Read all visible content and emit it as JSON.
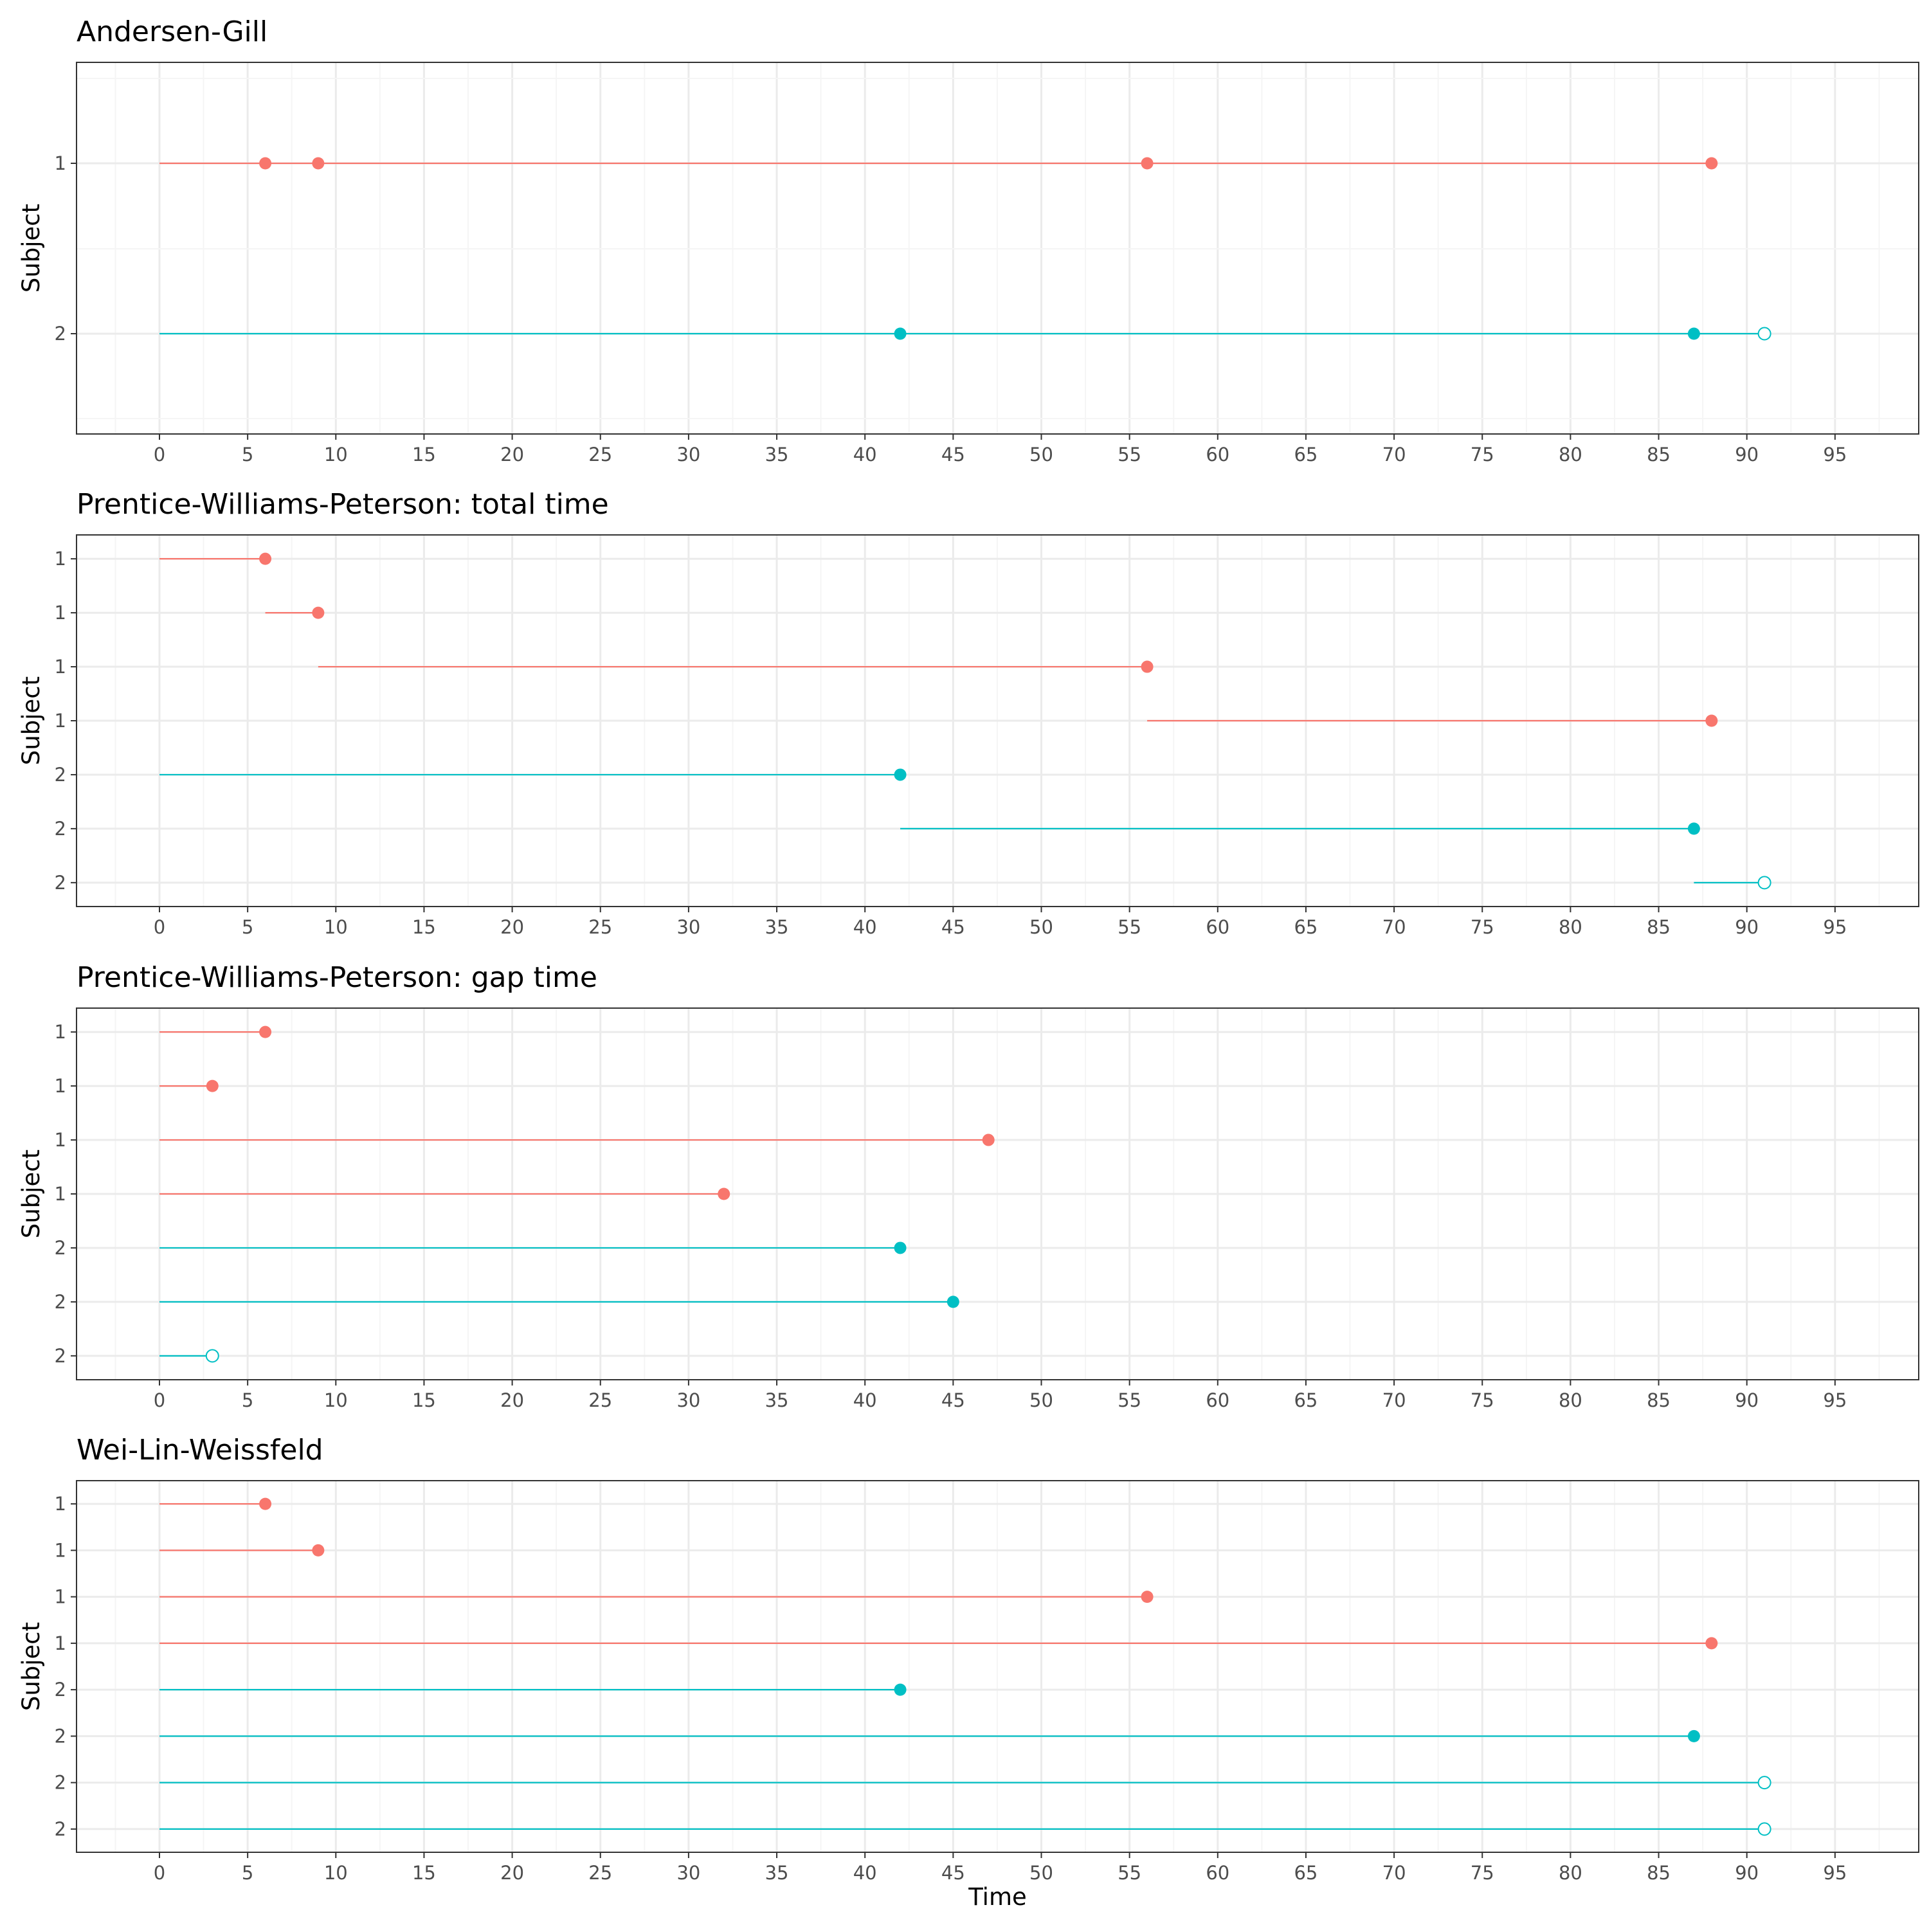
{
  "colors": {
    "subject_1": "#F8766D",
    "subject_2": "#00BFC4",
    "grid_major": "#EBEBEB",
    "grid_minor": "#F5F5F5",
    "panel_border": "#333333"
  },
  "chart_data": [
    {
      "type": "segment-event",
      "title": "Andersen-Gill",
      "xlabel": "",
      "ylabel": "Subject",
      "xlim": [
        0,
        95
      ],
      "x_ticks": [
        0,
        5,
        10,
        15,
        20,
        25,
        30,
        35,
        40,
        45,
        50,
        55,
        60,
        65,
        70,
        75,
        80,
        85,
        90,
        95
      ],
      "y_tick_labels": [
        "1",
        "2"
      ],
      "grid": true,
      "rows": [
        {
          "subject": "1",
          "segments": [
            [
              0,
              88
            ]
          ],
          "events": [
            6,
            9,
            56,
            88
          ],
          "censored": []
        },
        {
          "subject": "2",
          "segments": [
            [
              0,
              91
            ]
          ],
          "events": [
            42,
            87
          ],
          "censored": [
            91
          ]
        }
      ]
    },
    {
      "type": "segment-event",
      "title": "Prentice-Williams-Peterson: total time",
      "xlabel": "",
      "ylabel": "Subject",
      "xlim": [
        0,
        95
      ],
      "x_ticks": [
        0,
        5,
        10,
        15,
        20,
        25,
        30,
        35,
        40,
        45,
        50,
        55,
        60,
        65,
        70,
        75,
        80,
        85,
        90,
        95
      ],
      "y_tick_labels": [
        "1",
        "1",
        "1",
        "1",
        "2",
        "2",
        "2"
      ],
      "grid": true,
      "rows": [
        {
          "subject": "1",
          "start": 0,
          "stop": 6,
          "status": "event"
        },
        {
          "subject": "1",
          "start": 6,
          "stop": 9,
          "status": "event"
        },
        {
          "subject": "1",
          "start": 9,
          "stop": 56,
          "status": "event"
        },
        {
          "subject": "1",
          "start": 56,
          "stop": 88,
          "status": "event"
        },
        {
          "subject": "2",
          "start": 0,
          "stop": 42,
          "status": "event"
        },
        {
          "subject": "2",
          "start": 42,
          "stop": 87,
          "status": "event"
        },
        {
          "subject": "2",
          "start": 87,
          "stop": 91,
          "status": "censored"
        }
      ]
    },
    {
      "type": "segment-event",
      "title": "Prentice-Williams-Peterson: gap time",
      "xlabel": "",
      "ylabel": "Subject",
      "xlim": [
        0,
        95
      ],
      "x_ticks": [
        0,
        5,
        10,
        15,
        20,
        25,
        30,
        35,
        40,
        45,
        50,
        55,
        60,
        65,
        70,
        75,
        80,
        85,
        90,
        95
      ],
      "y_tick_labels": [
        "1",
        "1",
        "1",
        "1",
        "2",
        "2",
        "2"
      ],
      "grid": true,
      "rows": [
        {
          "subject": "1",
          "start": 0,
          "stop": 6,
          "status": "event"
        },
        {
          "subject": "1",
          "start": 0,
          "stop": 3,
          "status": "event"
        },
        {
          "subject": "1",
          "start": 0,
          "stop": 47,
          "status": "event"
        },
        {
          "subject": "1",
          "start": 0,
          "stop": 32,
          "status": "event"
        },
        {
          "subject": "2",
          "start": 0,
          "stop": 42,
          "status": "event"
        },
        {
          "subject": "2",
          "start": 0,
          "stop": 45,
          "status": "event"
        },
        {
          "subject": "2",
          "start": 0,
          "stop": 3,
          "status": "censored"
        }
      ]
    },
    {
      "type": "segment-event",
      "title": "Wei-Lin-Weissfeld",
      "xlabel": "Time",
      "ylabel": "Subject",
      "xlim": [
        0,
        95
      ],
      "x_ticks": [
        0,
        5,
        10,
        15,
        20,
        25,
        30,
        35,
        40,
        45,
        50,
        55,
        60,
        65,
        70,
        75,
        80,
        85,
        90,
        95
      ],
      "y_tick_labels": [
        "1",
        "1",
        "1",
        "1",
        "2",
        "2",
        "2",
        "2"
      ],
      "grid": true,
      "rows": [
        {
          "subject": "1",
          "start": 0,
          "stop": 6,
          "status": "event"
        },
        {
          "subject": "1",
          "start": 0,
          "stop": 9,
          "status": "event"
        },
        {
          "subject": "1",
          "start": 0,
          "stop": 56,
          "status": "event"
        },
        {
          "subject": "1",
          "start": 0,
          "stop": 88,
          "status": "event"
        },
        {
          "subject": "2",
          "start": 0,
          "stop": 42,
          "status": "event"
        },
        {
          "subject": "2",
          "start": 0,
          "stop": 87,
          "status": "event"
        },
        {
          "subject": "2",
          "start": 0,
          "stop": 91,
          "status": "censored"
        },
        {
          "subject": "2",
          "start": 0,
          "stop": 91,
          "status": "censored"
        }
      ]
    }
  ]
}
